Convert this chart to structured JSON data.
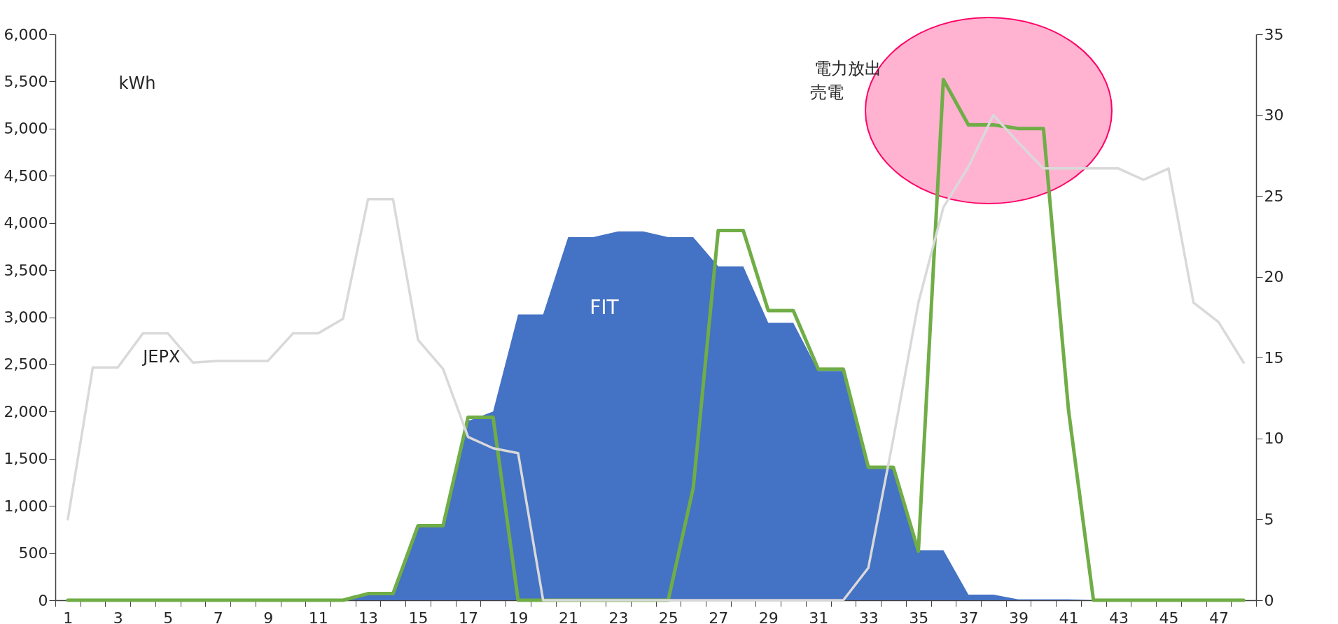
{
  "chart_data": {
    "type": "line",
    "ylabel": "kWh",
    "x": [
      1,
      2,
      3,
      4,
      5,
      6,
      7,
      8,
      9,
      10,
      11,
      12,
      13,
      14,
      15,
      16,
      17,
      18,
      19,
      20,
      21,
      22,
      23,
      24,
      25,
      26,
      27,
      28,
      29,
      30,
      31,
      32,
      33,
      34,
      35,
      36,
      37,
      38,
      39,
      40,
      41,
      42,
      43,
      44,
      45,
      46,
      47,
      48
    ],
    "xlim": [
      0.5,
      48.5
    ],
    "xticks": [
      {
        "value": 0.5,
        "label": null
      },
      1,
      {
        "value": 1.5,
        "label": null
      },
      {
        "value": 2.5,
        "label": null
      },
      3,
      {
        "value": 3.5,
        "label": null
      },
      {
        "value": 4.5,
        "label": null
      },
      5,
      {
        "value": 5.5,
        "label": null
      },
      {
        "value": 6.5,
        "label": null
      },
      7,
      {
        "value": 7.5,
        "label": null
      },
      {
        "value": 8.5,
        "label": null
      },
      9,
      {
        "value": 9.5,
        "label": null
      },
      {
        "value": 10.5,
        "label": null
      },
      11,
      {
        "value": 11.5,
        "label": null
      },
      {
        "value": 12.5,
        "label": null
      },
      13,
      {
        "value": 13.5,
        "label": null
      },
      {
        "value": 14.5,
        "label": null
      },
      15,
      {
        "value": 15.5,
        "label": null
      },
      {
        "value": 16.5,
        "label": null
      },
      17,
      {
        "value": 17.5,
        "label": null
      },
      {
        "value": 18.5,
        "label": null
      },
      19,
      {
        "value": 19.5,
        "label": null
      },
      {
        "value": 20.5,
        "label": null
      },
      21,
      {
        "value": 21.5,
        "label": null
      },
      {
        "value": 22.5,
        "label": null
      },
      23,
      {
        "value": 23.5,
        "label": null
      },
      {
        "value": 24.5,
        "label": null
      },
      25,
      {
        "value": 25.5,
        "label": null
      },
      {
        "value": 26.5,
        "label": null
      },
      27,
      {
        "value": 27.5,
        "label": null
      },
      {
        "value": 28.5,
        "label": null
      },
      29,
      {
        "value": 29.5,
        "label": null
      },
      {
        "value": 30.5,
        "label": null
      },
      31,
      {
        "value": 31.5,
        "label": null
      },
      {
        "value": 32.5,
        "label": null
      },
      33,
      {
        "value": 33.5,
        "label": null
      },
      {
        "value": 34.5,
        "label": null
      },
      35,
      {
        "value": 35.5,
        "label": null
      },
      {
        "value": 36.5,
        "label": null
      },
      37,
      {
        "value": 37.5,
        "label": null
      },
      {
        "value": 38.5,
        "label": null
      },
      39,
      {
        "value": 39.5,
        "label": null
      },
      {
        "value": 40.5,
        "label": null
      },
      41,
      {
        "value": 41.5,
        "label": null
      },
      {
        "value": 42.5,
        "label": null
      },
      43,
      {
        "value": 43.5,
        "label": null
      },
      {
        "value": 44.5,
        "label": null
      },
      45,
      {
        "value": 45.5,
        "label": null
      },
      {
        "value": 46.5,
        "label": null
      },
      47,
      {
        "value": 47.5,
        "label": null
      },
      {
        "value": 48.5,
        "label": null
      }
    ],
    "ylim": [
      0,
      6000
    ],
    "yticks": [
      0,
      500,
      {
        "value": 1000,
        "label": "1,000"
      },
      {
        "value": 1500,
        "label": "1,500"
      },
      {
        "value": 2000,
        "label": "2,000"
      },
      {
        "value": 2500,
        "label": "2,500"
      },
      {
        "value": 3000,
        "label": "3,000"
      },
      {
        "value": 3500,
        "label": "3,500"
      },
      {
        "value": 4000,
        "label": "4,000"
      },
      {
        "value": 4500,
        "label": "4,500"
      },
      {
        "value": 5000,
        "label": "5,000"
      },
      {
        "value": 5500,
        "label": "5,500"
      },
      {
        "value": 6000,
        "label": "6,000"
      }
    ],
    "y2lim": [
      0,
      35
    ],
    "y2ticks": [
      0,
      5,
      10,
      15,
      20,
      25,
      30,
      35
    ],
    "grid": false,
    "series": [
      {
        "name": "FIT",
        "type": "area",
        "color": "#4472c4",
        "values": [
          0,
          0,
          0,
          0,
          0,
          0,
          0,
          0,
          0,
          0,
          0,
          0,
          60,
          60,
          790,
          790,
          1900,
          2000,
          3030,
          3030,
          3850,
          3850,
          3910,
          3910,
          3850,
          3850,
          3540,
          3540,
          2940,
          2940,
          2430,
          2430,
          1410,
          1410,
          530,
          530,
          60,
          60,
          10,
          10,
          10,
          0,
          0,
          0,
          0,
          0,
          0,
          0
        ]
      },
      {
        "color": "#70ad47",
        "values": [
          0,
          0,
          0,
          0,
          0,
          0,
          0,
          0,
          0,
          0,
          0,
          0,
          70,
          70,
          790,
          790,
          1940,
          1940,
          0,
          0,
          0,
          0,
          0,
          0,
          0,
          1190,
          3920,
          3920,
          3070,
          3070,
          2450,
          2450,
          1410,
          1410,
          520,
          5520,
          5040,
          5040,
          5000,
          5000,
          2020,
          0,
          0,
          0,
          0,
          0,
          0,
          0
        ]
      },
      {
        "name": "JEPX",
        "axis": "y2",
        "color": "#d9d9d9",
        "values": [
          5.0,
          14.4,
          14.4,
          16.5,
          16.5,
          14.7,
          14.8,
          14.8,
          14.8,
          16.5,
          16.5,
          17.4,
          24.8,
          24.8,
          16.1,
          14.3,
          10.1,
          9.4,
          9.1,
          0,
          0,
          0,
          0,
          0,
          0,
          0,
          0,
          0,
          0,
          0,
          0,
          0,
          2.0,
          10.0,
          18.4,
          24.3,
          26.8,
          30.0,
          28.3,
          26.7,
          26.7,
          26.7,
          26.7,
          26.0,
          26.7,
          18.4,
          17.2,
          14.7
        ]
      }
    ],
    "annotations": [
      "電力放出",
      "売電"
    ]
  }
}
